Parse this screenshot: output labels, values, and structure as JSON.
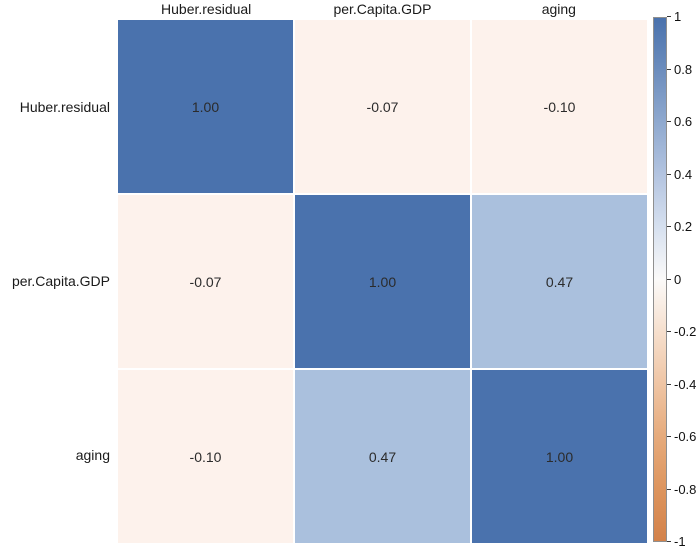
{
  "chart_data": {
    "type": "heatmap",
    "title": "",
    "variables": [
      "Huber.residual",
      "per.Capita.GDP",
      "aging"
    ],
    "matrix": [
      [
        1.0,
        -0.07,
        -0.1
      ],
      [
        -0.07,
        1.0,
        0.47
      ],
      [
        -0.1,
        0.47,
        1.0
      ]
    ],
    "cell_labels": [
      [
        "1.00",
        "-0.07",
        "-0.10"
      ],
      [
        "-0.07",
        "1.00",
        "0.47"
      ],
      [
        "-0.10",
        "0.47",
        "1.00"
      ]
    ],
    "cell_colors": [
      [
        "#4a72ad",
        "#fdf2ec",
        "#fdf2ec"
      ],
      [
        "#fdf2ec",
        "#4a72ad",
        "#aac0dd"
      ],
      [
        "#fdf2ec",
        "#aac0dd",
        "#4a72ad"
      ]
    ],
    "value_text_color": "#2b2b2b",
    "colorbar": {
      "position": "right",
      "range": [
        -1,
        1
      ],
      "ticks": [
        "1",
        "0.8",
        "0.6",
        "0.4",
        "0.2",
        "0",
        "-0.2",
        "-0.4",
        "-0.6",
        "-0.8",
        "-1"
      ],
      "gradient_stops": [
        "#4a72ad",
        "#6c8dbd",
        "#8fa9cf",
        "#b3c4e0",
        "#d6e0ef",
        "#fbfaf9",
        "#f6dfcd",
        "#efc5a4",
        "#e6ab7c",
        "#dd955e",
        "#d3824a"
      ]
    },
    "grid": false,
    "legend_position": "right"
  }
}
